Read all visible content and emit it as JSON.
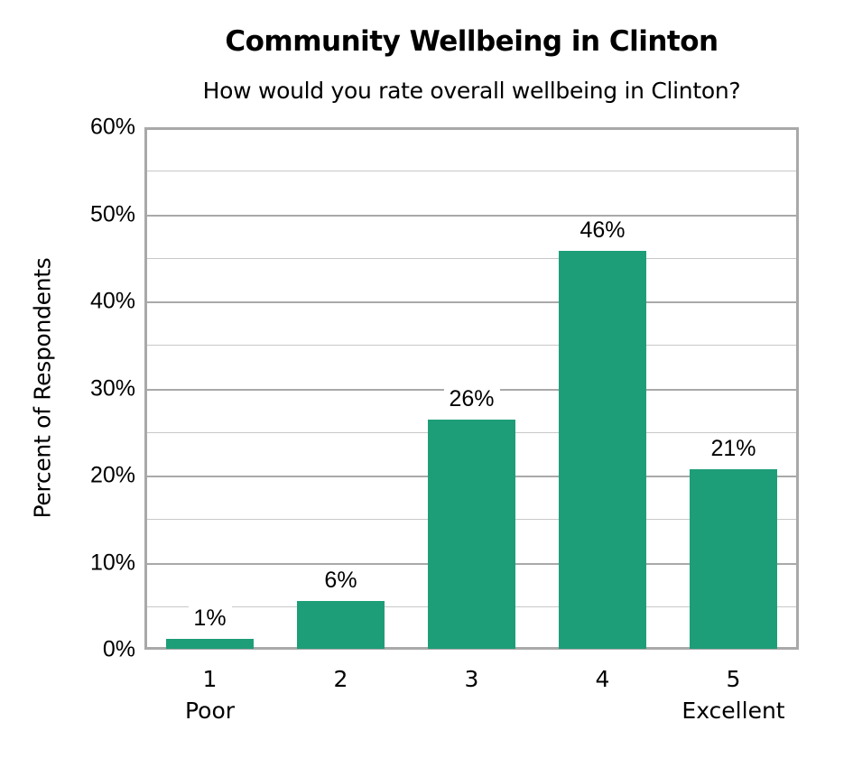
{
  "chart_data": {
    "type": "bar",
    "title": "Community Wellbeing in Clinton",
    "subtitle": "How would you rate overall wellbeing in Clinton?",
    "xlabel": "",
    "ylabel": "Percent of Respondents",
    "categories": [
      "1",
      "2",
      "3",
      "4",
      "5"
    ],
    "category_sublabels": [
      "Poor",
      "",
      "",
      "",
      "Excellent"
    ],
    "values": [
      1.2,
      5.6,
      26.4,
      45.8,
      20.7
    ],
    "data_labels": [
      "1%",
      "6%",
      "26%",
      "46%",
      "21%"
    ],
    "ylim": [
      0,
      60
    ],
    "yticks": [
      "0%",
      "10%",
      "20%",
      "30%",
      "40%",
      "50%",
      "60%"
    ],
    "grid": true,
    "legend": null,
    "bar_color": "#1e9e78"
  }
}
